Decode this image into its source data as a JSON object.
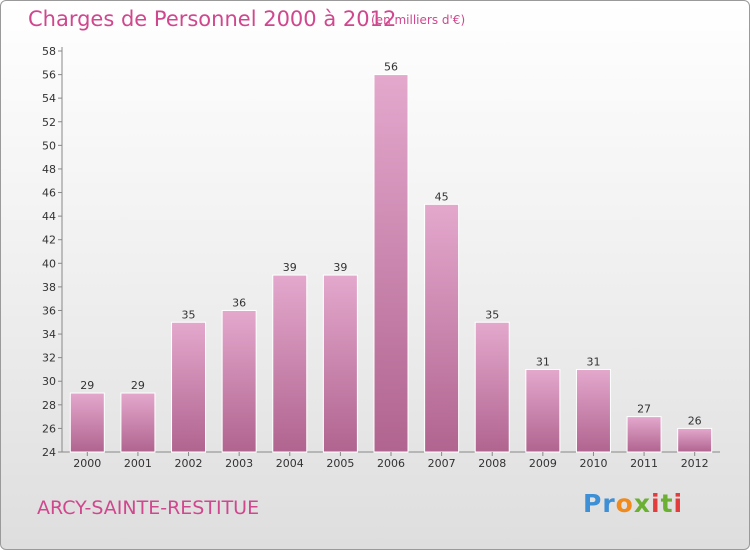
{
  "header": {
    "title": "Charges de Personnel 2000 à 2012",
    "subtitle": "(en milliers d'€)"
  },
  "footer": {
    "city": "ARCY-SAINTE-RESTITUE",
    "logo_letters": [
      "P",
      "r",
      "o",
      "x",
      "i",
      "t",
      "i"
    ]
  },
  "colors": {
    "bar_top": "#e4a8cd",
    "bar_bottom": "#b0648f",
    "title": "#d0478e",
    "logo": [
      "#3d8fd6",
      "#3d8fd6",
      "#f08a1c",
      "#6bb033",
      "#e23c3c",
      "#6bb033",
      "#e23c3c"
    ]
  },
  "chart_data": {
    "type": "bar",
    "categories": [
      "2000",
      "2001",
      "2002",
      "2003",
      "2004",
      "2005",
      "2006",
      "2007",
      "2008",
      "2009",
      "2010",
      "2011",
      "2012"
    ],
    "values": [
      29,
      29,
      35,
      36,
      39,
      39,
      56,
      45,
      35,
      31,
      31,
      27,
      26
    ],
    "ylim": [
      24,
      58
    ],
    "yticks": [
      24,
      26,
      28,
      30,
      32,
      34,
      36,
      38,
      40,
      42,
      44,
      46,
      48,
      50,
      52,
      54,
      56,
      58
    ],
    "grid": false,
    "xlabel": "",
    "ylabel": ""
  }
}
